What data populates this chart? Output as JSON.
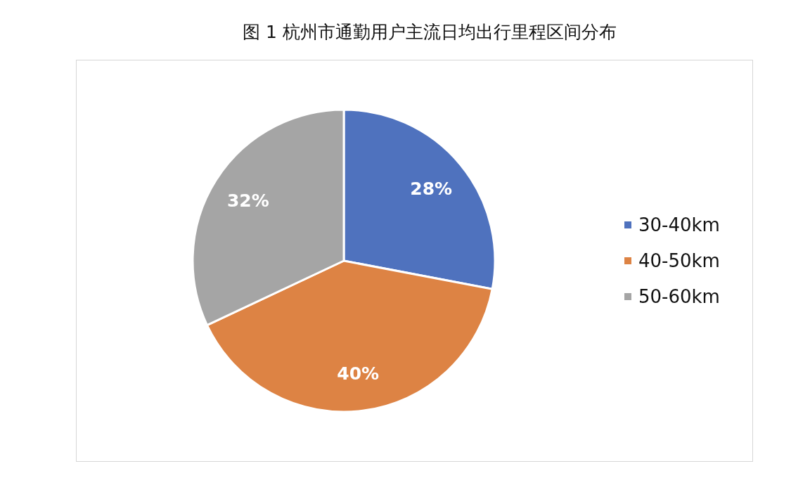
{
  "chart_data": {
    "type": "pie",
    "title": "图 1  杭州市通勤用户主流日均出行里程区间分布",
    "categories": [
      "30-40km",
      "40-50km",
      "50-60km"
    ],
    "values": [
      28,
      40,
      32
    ],
    "value_labels": [
      "28%",
      "40%",
      "32%"
    ],
    "colors": [
      "#4f72be",
      "#dd8344",
      "#a5a5a5"
    ],
    "legend": "right"
  }
}
